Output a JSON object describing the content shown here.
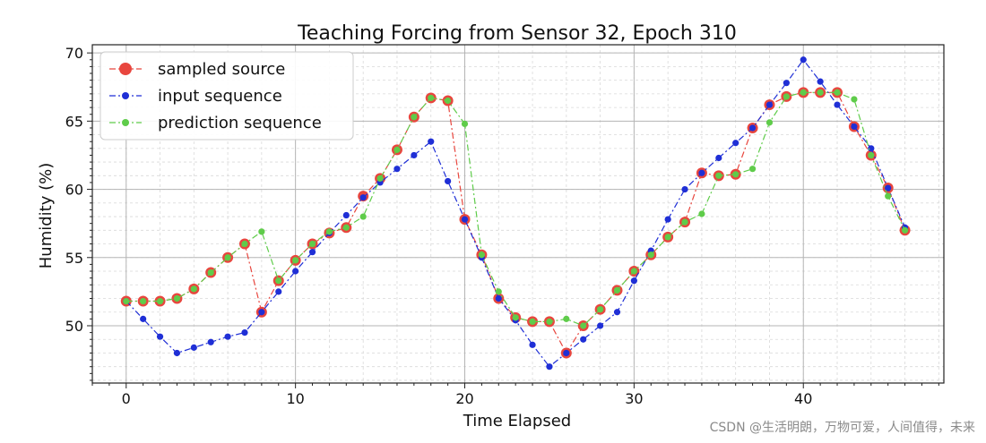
{
  "chart_data": {
    "type": "line",
    "title": "Teaching Forcing from Sensor 32, Epoch 310",
    "xlabel": "Time Elapsed",
    "ylabel": "Humidity (%)",
    "xlim": [
      -2,
      48.3
    ],
    "ylim": [
      45.8,
      70.6
    ],
    "xticks": [
      0,
      10,
      20,
      30,
      40
    ],
    "yticks": [
      50,
      55,
      60,
      65,
      70
    ],
    "grid": true,
    "legend_position": "upper-left",
    "series": [
      {
        "name": "sampled source",
        "color": "#e8463e",
        "marker": "large-circle",
        "x": [
          0,
          1,
          2,
          3,
          4,
          5,
          6,
          7,
          8,
          9,
          10,
          11,
          12,
          13,
          14,
          15,
          16,
          17,
          18,
          19,
          20,
          21,
          22,
          23,
          24,
          25,
          26,
          27,
          28,
          29,
          30,
          31,
          32,
          33,
          34,
          35,
          36,
          37,
          38,
          39,
          40,
          41,
          42,
          43,
          44,
          45,
          46
        ],
        "y": [
          51.8,
          51.8,
          51.8,
          52.0,
          52.7,
          53.9,
          55.0,
          56.0,
          51.0,
          53.3,
          54.8,
          56.0,
          56.8,
          57.2,
          59.5,
          60.8,
          62.9,
          65.3,
          66.7,
          66.5,
          57.8,
          55.2,
          52.0,
          50.6,
          50.3,
          50.3,
          48.0,
          50.0,
          51.2,
          52.6,
          54.0,
          55.2,
          56.5,
          57.6,
          61.2,
          61.0,
          61.1,
          64.5,
          66.2,
          66.8,
          67.1,
          67.1,
          67.1,
          64.6,
          62.5,
          60.1,
          57.0
        ]
      },
      {
        "name": "input sequence",
        "color": "#1f2fd6",
        "marker": "small-circle",
        "x": [
          0,
          1,
          2,
          3,
          4,
          5,
          6,
          7,
          8,
          9,
          10,
          11,
          12,
          13,
          14,
          15,
          16,
          17,
          18,
          19,
          20,
          21,
          22,
          23,
          24,
          25,
          26,
          27,
          28,
          29,
          30,
          31,
          32,
          33,
          34,
          35,
          36,
          37,
          38,
          39,
          40,
          41,
          42,
          43,
          44,
          45,
          46
        ],
        "y": [
          51.8,
          50.5,
          49.2,
          48.0,
          48.4,
          48.8,
          49.2,
          49.5,
          51.0,
          52.5,
          54.0,
          55.4,
          56.8,
          58.1,
          59.4,
          60.5,
          61.5,
          62.5,
          63.5,
          60.6,
          57.8,
          55.0,
          52.0,
          50.4,
          48.6,
          47.0,
          48.0,
          49.0,
          50.0,
          51.0,
          53.3,
          55.5,
          57.8,
          60.0,
          61.2,
          62.3,
          63.4,
          64.5,
          66.2,
          67.8,
          69.5,
          67.9,
          66.2,
          64.6,
          63.0,
          60.1,
          57.2
        ]
      },
      {
        "name": "prediction sequence",
        "color": "#5fcc4a",
        "marker": "small-circle",
        "x": [
          0,
          1,
          2,
          3,
          4,
          5,
          6,
          7,
          8,
          9,
          10,
          11,
          12,
          13,
          14,
          15,
          16,
          17,
          18,
          19,
          20,
          21,
          22,
          23,
          24,
          25,
          26,
          27,
          28,
          29,
          30,
          31,
          32,
          33,
          34,
          35,
          36,
          37,
          38,
          39,
          40,
          41,
          42,
          43,
          44,
          45,
          46
        ],
        "y": [
          51.8,
          51.8,
          51.8,
          52.0,
          52.7,
          53.9,
          55.0,
          56.0,
          56.9,
          53.3,
          54.8,
          56.0,
          56.9,
          57.2,
          58.0,
          60.8,
          62.9,
          65.3,
          66.7,
          66.5,
          64.8,
          55.2,
          52.5,
          50.6,
          50.3,
          50.3,
          50.5,
          50.0,
          51.2,
          52.6,
          54.0,
          55.2,
          56.5,
          57.6,
          58.2,
          61.0,
          61.1,
          61.5,
          64.9,
          66.8,
          67.1,
          67.1,
          67.1,
          66.6,
          62.5,
          59.5,
          57.0
        ]
      }
    ]
  },
  "watermark": "CSDN @生活明朗，万物可爱，人间值得，未来"
}
